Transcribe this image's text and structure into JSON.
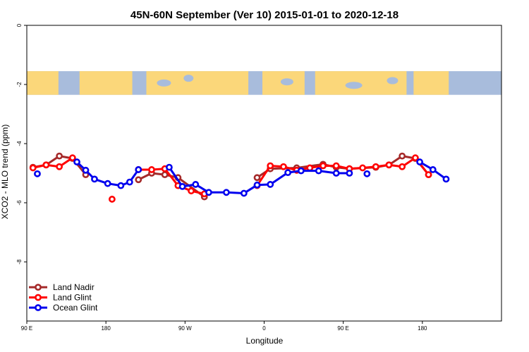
{
  "chart_data": {
    "type": "line",
    "title": "45N-60N September (Ver 10)   2015-01-01 to 2020-12-18",
    "xlabel": "Longitude",
    "ylabel": "XCO2 - MLO trend (ppm)",
    "xlim": [
      -90,
      180
    ],
    "ylim": [
      -10,
      0
    ],
    "x_ticks": [
      {
        "value": -90,
        "label": "90 E"
      },
      {
        "value": -45,
        "label": "180"
      },
      {
        "value": 0,
        "label": "90 W"
      },
      {
        "value": 45,
        "label": "0"
      },
      {
        "value": 90,
        "label": "90 E"
      },
      {
        "value": 135,
        "label": "180"
      }
    ],
    "y_ticks": [
      {
        "value": 0,
        "label": "0"
      },
      {
        "value": -2,
        "label": "-2"
      },
      {
        "value": -4,
        "label": "-4"
      },
      {
        "value": -6,
        "label": "-6"
      },
      {
        "value": -8,
        "label": "-8"
      }
    ],
    "map_band": {
      "ymin": -2.35,
      "ymax": -1.55,
      "ocean_color": "#a8bcdc",
      "land_color": "#fbd77a"
    },
    "legend_position": "bottom-left",
    "series": [
      {
        "name": "Land Nadir",
        "color": "#a52a2a",
        "segments": [
          [
            [
              -86.5,
              -4.8
            ],
            [
              -79,
              -4.72
            ],
            [
              -71.5,
              -4.42
            ],
            [
              -64,
              -4.5
            ],
            [
              -56.5,
              -5.05
            ]
          ],
          [
            [
              -26.5,
              -5.22
            ],
            [
              -19,
              -5.0
            ],
            [
              -11.5,
              -5.05
            ],
            [
              -4,
              -5.15
            ],
            [
              11,
              -5.8
            ]
          ],
          [
            [
              41,
              -5.15
            ],
            [
              48.5,
              -4.85
            ],
            [
              63.5,
              -4.82
            ],
            [
              78.5,
              -4.7
            ],
            [
              86,
              -4.8
            ],
            [
              93.5,
              -4.85
            ],
            [
              108.5,
              -4.8
            ],
            [
              116,
              -4.72
            ],
            [
              123.5,
              -4.42
            ],
            [
              131,
              -4.5
            ],
            [
              138.5,
              -5.05
            ]
          ]
        ]
      },
      {
        "name": "Land Glint",
        "color": "#ff0000",
        "segments": [
          [
            [
              -86.5,
              -4.82
            ],
            [
              -79,
              -4.72
            ],
            [
              -71.5,
              -4.78
            ],
            [
              -64,
              -4.48
            ]
          ],
          [
            [
              -41.5,
              -5.88
            ]
          ],
          [
            [
              -26.5,
              -4.88
            ],
            [
              -19,
              -4.88
            ],
            [
              -11.5,
              -4.85
            ],
            [
              -4,
              -5.42
            ],
            [
              3.5,
              -5.6
            ],
            [
              11,
              -5.7
            ]
          ],
          [
            [
              41,
              -5.42
            ],
            [
              48.5,
              -4.75
            ],
            [
              56,
              -4.78
            ],
            [
              63.5,
              -4.9
            ],
            [
              71,
              -4.82
            ],
            [
              78.5,
              -4.75
            ],
            [
              86,
              -4.75
            ],
            [
              93.5,
              -4.85
            ],
            [
              101,
              -4.82
            ],
            [
              108.5,
              -4.78
            ],
            [
              116,
              -4.72
            ],
            [
              123.5,
              -4.78
            ],
            [
              131,
              -4.48
            ],
            [
              138.5,
              -5.05
            ]
          ]
        ]
      },
      {
        "name": "Ocean Glint",
        "color": "#0000ee",
        "segments": [
          [
            [
              -84,
              -5.02
            ]
          ],
          [
            [
              -61.5,
              -4.62
            ],
            [
              -56.5,
              -4.9
            ],
            [
              -51.5,
              -5.2
            ],
            [
              -44,
              -5.35
            ],
            [
              -36.5,
              -5.42
            ],
            [
              -31.5,
              -5.3
            ],
            [
              -26.5,
              -4.88
            ]
          ],
          [
            [
              -9,
              -4.8
            ],
            [
              -1.5,
              -5.45
            ],
            [
              6,
              -5.38
            ],
            [
              13.5,
              -5.65
            ],
            [
              23.5,
              -5.65
            ],
            [
              33.5,
              -5.68
            ],
            [
              41,
              -5.4
            ],
            [
              48.5,
              -5.38
            ],
            [
              58.5,
              -4.98
            ],
            [
              66,
              -4.92
            ],
            [
              76,
              -4.92
            ],
            [
              86,
              -5.0
            ],
            [
              93.5,
              -5.0
            ]
          ],
          [
            [
              103.5,
              -5.02
            ]
          ],
          [
            [
              133.5,
              -4.62
            ],
            [
              141,
              -4.88
            ],
            [
              148.5,
              -5.2
            ]
          ]
        ]
      }
    ]
  }
}
